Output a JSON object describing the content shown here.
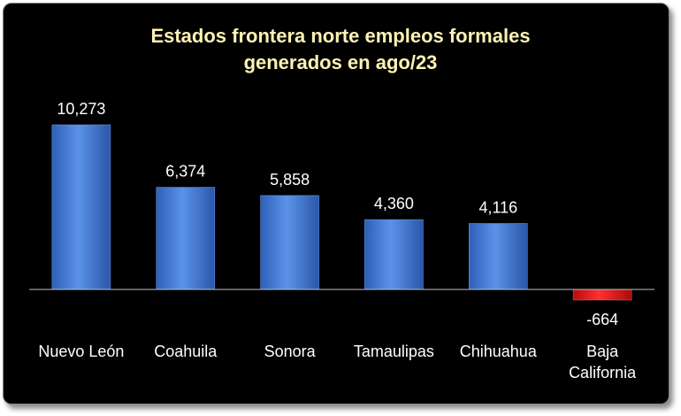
{
  "chart_data": {
    "type": "bar",
    "title_lines": [
      "Estados frontera norte empleos formales",
      "generados en ago/23"
    ],
    "categories": [
      "Nuevo León",
      "Coahuila",
      "Sonora",
      "Tamaulipas",
      "Chihuahua",
      "Baja California"
    ],
    "values": [
      10273,
      6374,
      5858,
      4360,
      4116,
      -664
    ],
    "value_labels": [
      "10,273",
      "6,374",
      "5,858",
      "4,360",
      "4,116",
      "-664"
    ],
    "grid": false,
    "legend": "none",
    "colors": {
      "positive": "#3f78d4",
      "negative": "#e01818",
      "background": "#000000",
      "title": "#fff2b3"
    }
  }
}
